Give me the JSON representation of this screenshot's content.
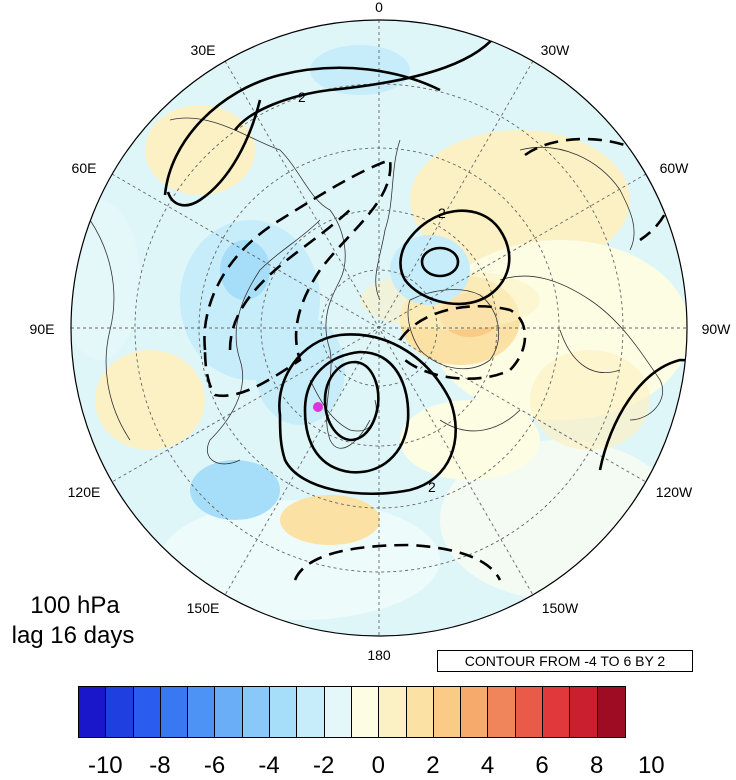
{
  "title": {
    "line1": "100 hPa",
    "line2": "lag 16 days"
  },
  "contour_note": "CONTOUR FROM -4 TO 6 BY 2",
  "map": {
    "projection": "north-polar-stereographic",
    "longitude_labels": [
      "0",
      "30W",
      "60W",
      "90W",
      "120W",
      "150W",
      "180",
      "150E",
      "120E",
      "90E",
      "60E",
      "30E"
    ],
    "contour_label": "2",
    "marker_color": "#dd33dd",
    "contour_levels": [
      -4,
      -2,
      2,
      4,
      6
    ],
    "shading": {
      "positive_regions": [
        "North Atlantic",
        "Eastern Canada / Hudson Bay",
        "North Pacific"
      ],
      "negative_regions": [
        "Central Asia",
        "Siberia",
        "Arctic",
        "Western North Pacific"
      ]
    }
  },
  "colorbar": {
    "labels": [
      "-10",
      "-8",
      "-6",
      "-4",
      "-2",
      "0",
      "2",
      "4",
      "6",
      "8",
      "10"
    ],
    "colors": [
      "#1a16c9",
      "#1f3fe0",
      "#2a5cef",
      "#3a77f3",
      "#4d92f5",
      "#6aaef7",
      "#8ac8f9",
      "#a6def9",
      "#c6edf9",
      "#e4f8f9",
      "#fdfde4",
      "#fcf1c4",
      "#fbe1a3",
      "#f9cb86",
      "#f6ab6d",
      "#f0845a",
      "#ea5a48",
      "#e0383b",
      "#c91f2f",
      "#9e0c23"
    ]
  }
}
